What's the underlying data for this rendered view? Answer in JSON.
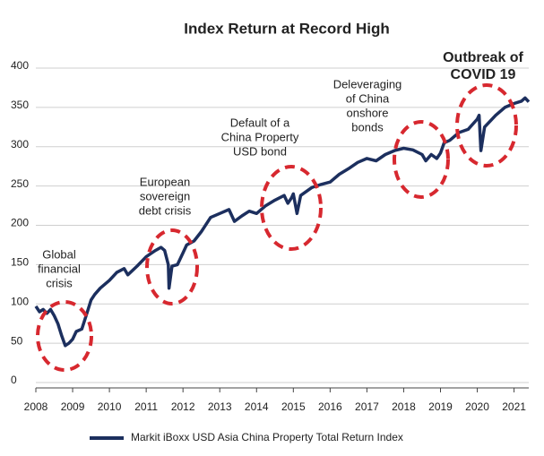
{
  "chart_data": {
    "type": "line",
    "title": "Index Return at Record High",
    "x": [
      2008.0,
      2008.1,
      2008.2,
      2008.3,
      2008.4,
      2008.5,
      2008.6,
      2008.7,
      2008.8,
      2008.9,
      2009.0,
      2009.1,
      2009.25,
      2009.4,
      2009.5,
      2009.6,
      2009.75,
      2010.0,
      2010.2,
      2010.4,
      2010.5,
      2010.75,
      2011.0,
      2011.25,
      2011.4,
      2011.5,
      2011.6,
      2011.62,
      2011.7,
      2011.85,
      2012.0,
      2012.1,
      2012.3,
      2012.5,
      2012.75,
      2013.0,
      2013.25,
      2013.4,
      2013.6,
      2013.8,
      2014.0,
      2014.25,
      2014.5,
      2014.75,
      2014.85,
      2014.95,
      2015.0,
      2015.1,
      2015.2,
      2015.5,
      2015.75,
      2016.0,
      2016.25,
      2016.5,
      2016.75,
      2017.0,
      2017.25,
      2017.5,
      2017.75,
      2018.0,
      2018.25,
      2018.5,
      2018.6,
      2018.75,
      2018.9,
      2019.0,
      2019.1,
      2019.25,
      2019.5,
      2019.75,
      2020.0,
      2020.05,
      2020.1,
      2020.2,
      2020.5,
      2020.75,
      2021.0,
      2021.2,
      2021.3,
      2021.4
    ],
    "series": [
      {
        "name": "Markit iBoxx USD Asia China Property Total Return Index",
        "color": "#1c2f5e",
        "values": [
          97,
          90,
          93,
          88,
          93,
          85,
          75,
          60,
          47,
          50,
          55,
          65,
          68,
          90,
          105,
          112,
          120,
          130,
          140,
          145,
          137,
          148,
          160,
          168,
          172,
          168,
          150,
          120,
          148,
          150,
          165,
          175,
          180,
          192,
          210,
          215,
          220,
          205,
          212,
          218,
          215,
          225,
          232,
          238,
          228,
          235,
          240,
          215,
          238,
          248,
          252,
          255,
          265,
          272,
          280,
          285,
          282,
          290,
          295,
          298,
          296,
          290,
          282,
          290,
          285,
          292,
          305,
          308,
          318,
          322,
          335,
          340,
          295,
          325,
          340,
          350,
          355,
          358,
          362,
          357
        ]
      }
    ],
    "xlim": [
      2008,
      2021.4
    ],
    "xticks": [
      2008,
      2009,
      2010,
      2011,
      2012,
      2013,
      2014,
      2015,
      2016,
      2017,
      2018,
      2019,
      2020,
      2021
    ],
    "ylim": [
      0,
      400
    ],
    "yticks": [
      0,
      50,
      100,
      150,
      200,
      250,
      300,
      350,
      400
    ],
    "grid": true,
    "annotations": [
      {
        "lines": [
          "Global",
          "financial",
          "crisis"
        ]
      },
      {
        "lines": [
          "European",
          "sovereign",
          "debt crisis"
        ]
      },
      {
        "lines": [
          "Default of a",
          "China Property",
          "USD bond"
        ]
      },
      {
        "lines": [
          "Deleveraging",
          "of China",
          "onshore",
          "bonds"
        ]
      },
      {
        "lines": [
          "Outbreak of",
          "COVID 19"
        ]
      }
    ]
  }
}
